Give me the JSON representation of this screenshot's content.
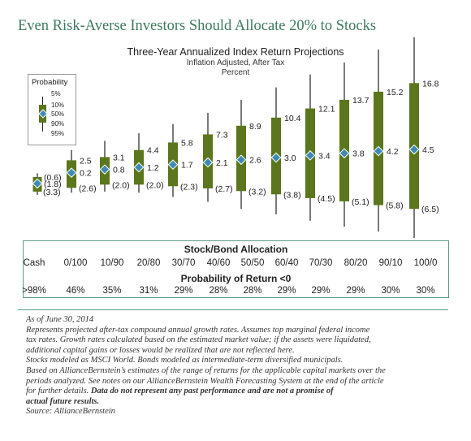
{
  "title": "Even Risk-Averse Investors Should Allocate 20% to Stocks",
  "chart_data": {
    "type": "box",
    "title": "Three-Year Annualized Index Return Projections",
    "subtitle1": "Inflation Adjusted, After Tax",
    "subtitle2": "Percent",
    "categories": [
      "Cash",
      "0/100",
      "10/90",
      "20/80",
      "30/70",
      "40/60",
      "50/50",
      "60/40",
      "70/30",
      "80/20",
      "90/10",
      "100/0"
    ],
    "p95": [
      0.1,
      4.4,
      6.1,
      7.5,
      9.2,
      11.3,
      13.7,
      16.0,
      18.4,
      20.6,
      23.0,
      25.3
    ],
    "p90": [
      -0.6,
      2.5,
      3.1,
      4.4,
      5.8,
      7.3,
      8.9,
      10.4,
      12.1,
      13.7,
      15.2,
      16.8
    ],
    "p50": [
      -1.8,
      0.2,
      0.8,
      1.2,
      1.7,
      2.1,
      2.6,
      3.0,
      3.4,
      3.8,
      4.2,
      4.5
    ],
    "p10": [
      -3.3,
      -2.6,
      -2.0,
      -2.0,
      -2.3,
      -2.7,
      -3.2,
      -3.8,
      -4.5,
      -5.1,
      -5.8,
      -6.5
    ],
    "p5": [
      -3.9,
      -3.5,
      -3.3,
      -3.5,
      -4.3,
      -5.2,
      -6.5,
      -7.5,
      -8.7,
      -9.8,
      -10.7,
      -11.9
    ],
    "labels_high": [
      "(0.6)",
      "2.5",
      "3.1",
      "4.4",
      "5.8",
      "7.3",
      "8.9",
      "10.4",
      "12.1",
      "13.7",
      "15.2",
      "16.8"
    ],
    "labels_mid": [
      "(1.8)",
      "0.2",
      "0.8",
      "1.2",
      "1.7",
      "2.1",
      "2.6",
      "3.0",
      "3.4",
      "3.8",
      "4.2",
      "4.5"
    ],
    "labels_low": [
      "(3.3)",
      "(2.6)",
      "(2.0)",
      "(2.0)",
      "(2.3)",
      "(2.7)",
      "(3.2)",
      "(3.8)",
      "(4.5)",
      "(5.1)",
      "(5.8)",
      "(6.5)"
    ],
    "colors": {
      "box": "#5b761c",
      "median": "#3e8ab5",
      "whisker": "#222222"
    }
  },
  "legend": {
    "title": "Probability",
    "items": [
      "5%",
      "10%",
      "50%",
      "90%",
      "95%"
    ]
  },
  "table": {
    "header1": "Stock/Bond Allocation",
    "allocations": [
      "Cash",
      "0/100",
      "10/90",
      "20/80",
      "30/70",
      "40/60",
      "50/50",
      "60/40",
      "70/30",
      "80/20",
      "90/10",
      "100/0"
    ],
    "header2": "Probability of Return <0",
    "probabilities": [
      ">98%",
      "46%",
      "35%",
      "31%",
      "29%",
      "28%",
      "28%",
      "29%",
      "29%",
      "29%",
      "30%",
      "30%"
    ]
  },
  "notes": {
    "line1": "As of June 30, 2014",
    "line2": "Represents projected after-tax compound annual growth rates. Assumes top marginal federal income",
    "line3": "tax rates. Growth rates calculated based on the estimated market value; if the assets were liquidated,",
    "line4": "additional capital gains or losses would be realized that are not reflected here.",
    "line5": "Stocks modeled as MSCI World. Bonds modeled as intermediate-term diversified municipals.",
    "line6": "Based on AllianceBernstein’s estimates of the range of returns for the applicable capital markets over the",
    "line7": "periods analyzed. See notes on our AllianceBernstein Wealth Forecasting System at the end of the article",
    "line8a": "for further details.",
    "line8b": "Data do not represent any past performance and are not a promise of",
    "line9": "actual future results.",
    "line10": "Source: AllianceBernstein"
  }
}
